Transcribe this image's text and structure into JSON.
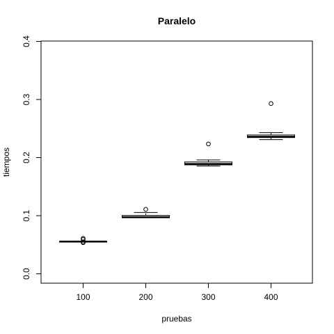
{
  "chart_data": {
    "type": "boxplot",
    "title": "Paralelo",
    "xlabel": "pruebas",
    "ylabel": "tiempos",
    "categories": [
      "100",
      "200",
      "300",
      "400"
    ],
    "ylim": [
      0.0,
      0.4
    ],
    "y_ticks": [
      "0.0",
      "0.1",
      "0.2",
      "0.3",
      "0.4"
    ],
    "boxes": [
      {
        "category": "100",
        "whisker_low": 0.0548,
        "q1": 0.0552,
        "median": 0.0555,
        "q3": 0.0558,
        "whisker_high": 0.0562,
        "outliers": [
          0.0535,
          0.055,
          0.059,
          0.061
        ]
      },
      {
        "category": "200",
        "whisker_low": 0.0965,
        "q1": 0.0965,
        "median": 0.0975,
        "q3": 0.1005,
        "whisker_high": 0.1055,
        "outliers": [
          0.111
        ]
      },
      {
        "category": "300",
        "whisker_low": 0.1855,
        "q1": 0.1875,
        "median": 0.189,
        "q3": 0.1925,
        "whisker_high": 0.196,
        "outliers": [
          0.2235
        ]
      },
      {
        "category": "400",
        "whisker_low": 0.231,
        "q1": 0.2345,
        "median": 0.236,
        "q3": 0.239,
        "whisker_high": 0.243,
        "outliers": [
          0.293
        ]
      }
    ],
    "grid": false
  }
}
